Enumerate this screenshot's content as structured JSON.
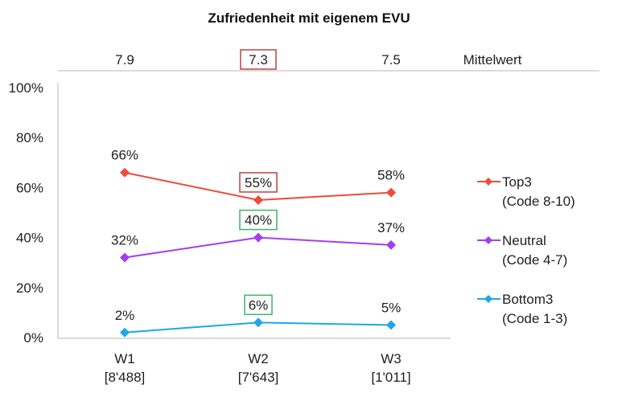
{
  "chart_data": {
    "type": "line",
    "title": "Zufriedenheit mit eigenem EVU",
    "xlabel": "",
    "ylabel": "",
    "ylim": [
      0,
      100
    ],
    "y_ticks": [
      "0%",
      "20%",
      "40%",
      "60%",
      "80%",
      "100%"
    ],
    "y_tick_values": [
      0,
      20,
      40,
      60,
      80,
      100
    ],
    "categories": [
      "W1",
      "W2",
      "W3"
    ],
    "category_counts": [
      "[8'488]",
      "[7'643]",
      "[1'011]"
    ],
    "mean_label": "Mittelwert",
    "means": [
      "7.9",
      "7.3",
      "7.5"
    ],
    "means_highlighted": [
      false,
      true,
      false
    ],
    "grid": false,
    "legend_position": "right",
    "series": [
      {
        "name": "Top3",
        "sub": "(Code 8-10)",
        "color": "#ee4b3b",
        "values": [
          66,
          55,
          58
        ],
        "labels": [
          "66%",
          "55%",
          "58%"
        ],
        "highlight": [
          false,
          true,
          false
        ],
        "highlight_color": "#c0403f"
      },
      {
        "name": "Neutral",
        "sub": "(Code 4-7)",
        "color": "#a23ef0",
        "values": [
          32,
          40,
          37
        ],
        "labels": [
          "32%",
          "40%",
          "37%"
        ],
        "highlight": [
          false,
          true,
          false
        ],
        "highlight_color": "#3cb56a"
      },
      {
        "name": "Bottom3",
        "sub": "(Code 1-3)",
        "color": "#20a6e6",
        "values": [
          2,
          6,
          5
        ],
        "labels": [
          "2%",
          "6%",
          "5%"
        ],
        "highlight": [
          false,
          true,
          false
        ],
        "highlight_color": "#3cb56a"
      }
    ],
    "mean_highlight_color": "#c0403f"
  }
}
